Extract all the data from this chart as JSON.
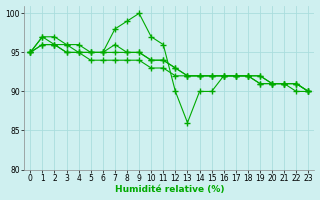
{
  "xlabel": "Humidité relative (%)",
  "ylabel": "",
  "background_color": "#cff0f0",
  "grid_color": "#aadddd",
  "line_color": "#00aa00",
  "xlim": [
    -0.5,
    23.5
  ],
  "ylim": [
    80,
    101
  ],
  "yticks": [
    80,
    85,
    90,
    95,
    100
  ],
  "xticks": [
    0,
    1,
    2,
    3,
    4,
    5,
    6,
    7,
    8,
    9,
    10,
    11,
    12,
    13,
    14,
    15,
    16,
    17,
    18,
    19,
    20,
    21,
    22,
    23
  ],
  "series": [
    [
      95,
      97,
      97,
      96,
      96,
      95,
      95,
      98,
      99,
      100,
      97,
      96,
      90,
      86,
      90,
      90,
      92,
      92,
      92,
      92,
      91,
      91,
      91,
      90
    ],
    [
      95,
      97,
      96,
      96,
      95,
      95,
      95,
      96,
      95,
      95,
      94,
      94,
      93,
      92,
      92,
      92,
      92,
      92,
      92,
      92,
      91,
      91,
      91,
      90
    ],
    [
      95,
      96,
      96,
      95,
      95,
      95,
      95,
      95,
      95,
      95,
      94,
      94,
      93,
      92,
      92,
      92,
      92,
      92,
      92,
      91,
      91,
      91,
      91,
      90
    ],
    [
      95,
      96,
      96,
      95,
      95,
      94,
      94,
      94,
      94,
      94,
      93,
      93,
      92,
      92,
      92,
      92,
      92,
      92,
      92,
      91,
      91,
      91,
      90,
      90
    ]
  ],
  "marker": "+",
  "markersize": 4,
  "linewidth": 0.8,
  "tick_fontsize": 5.5,
  "xlabel_fontsize": 6.5
}
